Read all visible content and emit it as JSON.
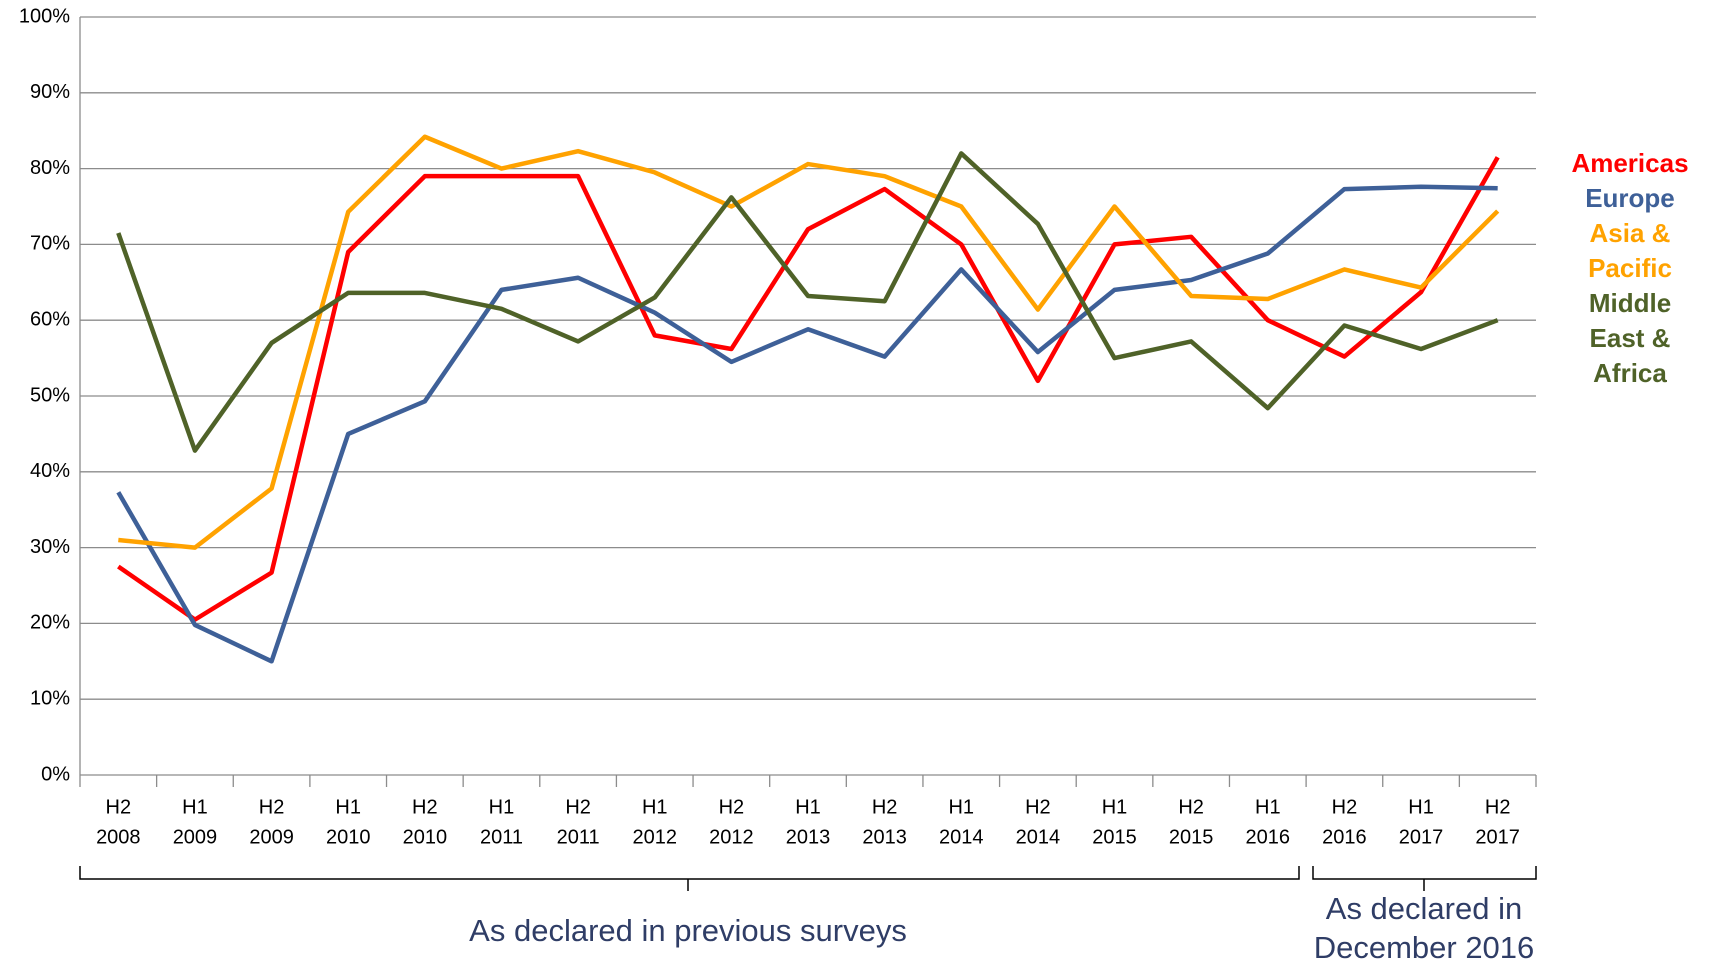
{
  "chart_data": {
    "type": "line",
    "categories": [
      [
        "H2",
        "2008"
      ],
      [
        "H1",
        "2009"
      ],
      [
        "H2",
        "2009"
      ],
      [
        "H1",
        "2010"
      ],
      [
        "H2",
        "2010"
      ],
      [
        "H1",
        "2011"
      ],
      [
        "H2",
        "2011"
      ],
      [
        "H1",
        "2012"
      ],
      [
        "H2",
        "2012"
      ],
      [
        "H1",
        "2013"
      ],
      [
        "H2",
        "2013"
      ],
      [
        "H1",
        "2014"
      ],
      [
        "H2",
        "2014"
      ],
      [
        "H1",
        "2015"
      ],
      [
        "H2",
        "2015"
      ],
      [
        "H1",
        "2016"
      ],
      [
        "H2",
        "2016"
      ],
      [
        "H1",
        "2017"
      ],
      [
        "H2",
        "2017"
      ]
    ],
    "series": [
      {
        "name": "Americas",
        "color": "#ff0000",
        "values": [
          27.5,
          20.5,
          26.7,
          69,
          79,
          79,
          79,
          58,
          56.2,
          72,
          77.3,
          70,
          52,
          70,
          71,
          60,
          55.2,
          63.7,
          81.5
        ]
      },
      {
        "name": "Europe",
        "color": "#3e6098",
        "values": [
          37.3,
          19.8,
          15,
          45,
          49.3,
          64,
          65.6,
          61,
          54.5,
          58.8,
          55.2,
          66.7,
          55.8,
          64,
          65.3,
          68.8,
          77.3,
          77.6,
          77.4
        ]
      },
      {
        "name": "Asia & Pacific",
        "color": "#ffa200",
        "values": [
          31,
          30,
          37.8,
          74.3,
          84.2,
          80,
          82.3,
          79.5,
          75,
          80.6,
          79,
          75,
          61.4,
          75,
          63.2,
          62.8,
          66.7,
          64.3,
          74.4
        ]
      },
      {
        "name": "Middle East & Africa",
        "color": "#4f6228",
        "values": [
          71.5,
          42.8,
          57,
          63.6,
          63.6,
          61.5,
          57.2,
          63,
          76.2,
          63.2,
          62.5,
          82,
          72.7,
          55,
          57.2,
          48.4,
          59.3,
          56.2,
          60
        ]
      }
    ],
    "ylim": [
      0,
      100
    ],
    "yticks": [
      {
        "value": 0,
        "label": "0%"
      },
      {
        "value": 10,
        "label": "10%"
      },
      {
        "value": 20,
        "label": "20%"
      },
      {
        "value": 30,
        "label": "30%"
      },
      {
        "value": 40,
        "label": "40%"
      },
      {
        "value": 50,
        "label": "50%"
      },
      {
        "value": 60,
        "label": "60%"
      },
      {
        "value": 70,
        "label": "70%"
      },
      {
        "value": 80,
        "label": "80%"
      },
      {
        "value": 90,
        "label": "90%"
      },
      {
        "value": 100,
        "label": "100%"
      }
    ],
    "grid": true,
    "annotations": [
      "As declared in previous surveys",
      "As declared in December 2016"
    ]
  }
}
